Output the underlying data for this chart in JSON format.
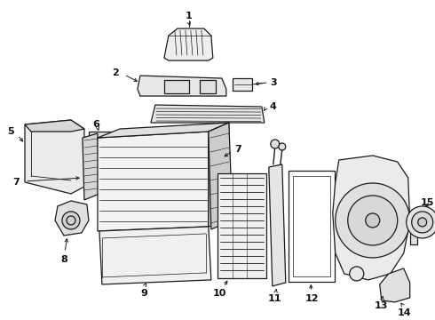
{
  "background_color": "#ffffff",
  "line_color": "#1a1a1a",
  "label_color": "#111111",
  "fig_width": 4.9,
  "fig_height": 3.6,
  "dpi": 100
}
